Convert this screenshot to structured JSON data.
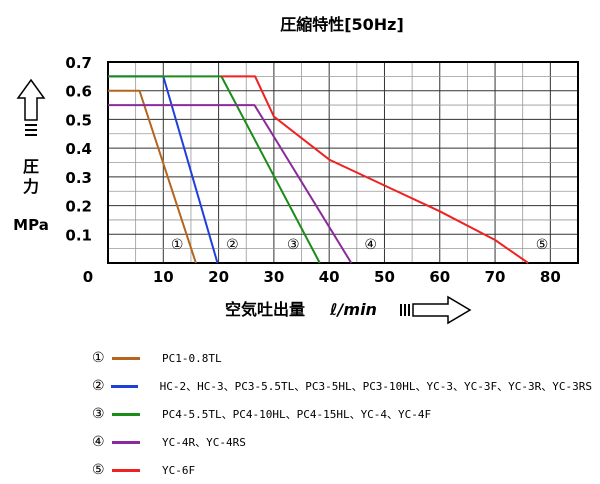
{
  "chart_data": {
    "type": "line",
    "title": "圧縮特性[50Hz]",
    "ylabel_arrow_text": "圧力",
    "ylabel_unit": "MPa",
    "xlabel_text": "空気吐出量",
    "xlabel_unit": "ℓ/min",
    "xlim": [
      0,
      85
    ],
    "ylim": [
      0,
      0.7
    ],
    "x_ticks": [
      "0",
      "10",
      "20",
      "30",
      "40",
      "50",
      "60",
      "70",
      "80"
    ],
    "y_ticks": [
      "0.1",
      "0.2",
      "0.3",
      "0.4",
      "0.5",
      "0.6",
      "0.7"
    ],
    "grid": true,
    "series": [
      {
        "name": "①",
        "color": "#b5651d",
        "x": [
          0,
          5.7,
          15.9
        ],
        "y": [
          0.6,
          0.6,
          0
        ]
      },
      {
        "name": "②",
        "color": "#1f3fdd",
        "x": [
          0,
          10,
          19.8
        ],
        "y": [
          0.65,
          0.65,
          0
        ]
      },
      {
        "name": "③",
        "color": "#1a8c1a",
        "x": [
          0,
          20.5,
          38.3
        ],
        "y": [
          0.65,
          0.65,
          0
        ]
      },
      {
        "name": "④",
        "color": "#8b2a9e",
        "x": [
          0,
          26.5,
          44
        ],
        "y": [
          0.55,
          0.55,
          0
        ]
      },
      {
        "name": "⑤",
        "color": "#ee2222",
        "x": [
          20.5,
          26.6,
          30,
          40,
          50,
          60,
          70,
          76
        ],
        "y": [
          0.65,
          0.65,
          0.51,
          0.36,
          0.27,
          0.18,
          0.08,
          0
        ]
      }
    ],
    "curve_markers": [
      {
        "label": "①",
        "x": 12.5,
        "y": 0.055
      },
      {
        "label": "②",
        "x": 22.5,
        "y": 0.055
      },
      {
        "label": "③",
        "x": 33.5,
        "y": 0.055
      },
      {
        "label": "④",
        "x": 47.5,
        "y": 0.055
      },
      {
        "label": "⑤",
        "x": 78.5,
        "y": 0.055
      }
    ],
    "legend": [
      {
        "marker": "①",
        "color": "#b5651d",
        "text": "PC1-0.8TL"
      },
      {
        "marker": "②",
        "color": "#1f3fdd",
        "text": "HC-2、HC-3、PC3-5.5TL、PC3-5HL、PC3-10HL、YC-3、YC-3F、YC-3R、YC-3RS"
      },
      {
        "marker": "③",
        "color": "#1a8c1a",
        "text": "PC4-5.5TL、PC4-10HL、PC4-15HL、YC-4、YC-4F"
      },
      {
        "marker": "④",
        "color": "#8b2a9e",
        "text": "YC-4R、YC-4RS"
      },
      {
        "marker": "⑤",
        "color": "#ee2222",
        "text": "YC-6F"
      }
    ]
  }
}
